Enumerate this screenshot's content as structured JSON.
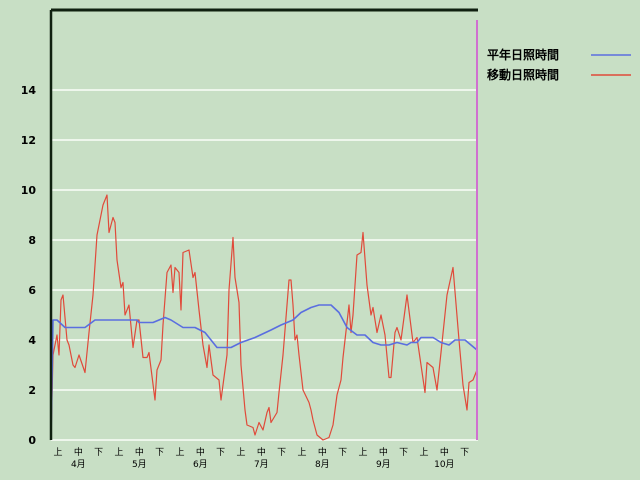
{
  "chart_data": {
    "type": "line",
    "title": "",
    "xlabel": "",
    "ylabel": "",
    "ylim": [
      0,
      17.2
    ],
    "yticks": [
      "0",
      "2",
      "4",
      "6",
      "8",
      "10",
      "12",
      "14"
    ],
    "grid": true,
    "legend_position": "top-right",
    "x_dekad_labels": [
      "上",
      "中",
      "下",
      "上",
      "中",
      "下",
      "上",
      "中",
      "下",
      "上",
      "中",
      "下",
      "上",
      "中",
      "下",
      "上",
      "中",
      "下",
      "上",
      "中",
      "下"
    ],
    "x_month_labels": [
      "4月",
      "5月",
      "6月",
      "7月",
      "8月",
      "9月",
      "10月"
    ],
    "x_range": [
      "04-01",
      "10-31"
    ],
    "series": [
      {
        "name": "平年日照時間",
        "color": "#5a6ee0",
        "points": [
          [
            "04-01",
            0
          ],
          [
            "04-02",
            4.8
          ],
          [
            "04-04",
            4.8
          ],
          [
            "04-08",
            4.5
          ],
          [
            "04-18",
            4.5
          ],
          [
            "04-23",
            4.8
          ],
          [
            "05-14",
            4.8
          ],
          [
            "05-15",
            4.7
          ],
          [
            "05-22",
            4.7
          ],
          [
            "05-28",
            4.9
          ],
          [
            "05-31",
            4.8
          ],
          [
            "06-06",
            4.5
          ],
          [
            "06-12",
            4.5
          ],
          [
            "06-17",
            4.3
          ],
          [
            "06-23",
            3.7
          ],
          [
            "06-30",
            3.7
          ],
          [
            "07-05",
            3.9
          ],
          [
            "07-12",
            4.1
          ],
          [
            "07-20",
            4.4
          ],
          [
            "07-25",
            4.6
          ],
          [
            "07-31",
            4.8
          ],
          [
            "08-04",
            5.1
          ],
          [
            "08-09",
            5.3
          ],
          [
            "08-13",
            5.4
          ],
          [
            "08-19",
            5.4
          ],
          [
            "08-23",
            5.1
          ],
          [
            "08-27",
            4.5
          ],
          [
            "09-01",
            4.2
          ],
          [
            "09-05",
            4.2
          ],
          [
            "09-09",
            3.9
          ],
          [
            "09-13",
            3.8
          ],
          [
            "09-17",
            3.8
          ],
          [
            "09-21",
            3.9
          ],
          [
            "09-26",
            3.8
          ],
          [
            "09-28",
            3.9
          ],
          [
            "10-01",
            3.9
          ],
          [
            "10-03",
            4.1
          ],
          [
            "10-09",
            4.1
          ],
          [
            "10-13",
            3.9
          ],
          [
            "10-17",
            3.8
          ],
          [
            "10-20",
            4.0
          ],
          [
            "10-25",
            4.0
          ],
          [
            "10-31",
            3.6
          ]
        ]
      },
      {
        "name": "移動日照時間",
        "color": "#e04a3a",
        "points": [
          [
            "04-01",
            0
          ],
          [
            "04-02",
            3.4
          ],
          [
            "04-04",
            4.2
          ],
          [
            "04-05",
            3.4
          ],
          [
            "04-06",
            5.6
          ],
          [
            "04-07",
            5.8
          ],
          [
            "04-09",
            4.0
          ],
          [
            "04-10",
            3.8
          ],
          [
            "04-12",
            3.0
          ],
          [
            "04-13",
            2.9
          ],
          [
            "04-15",
            3.4
          ],
          [
            "04-18",
            2.7
          ],
          [
            "04-20",
            4.3
          ],
          [
            "04-22",
            5.8
          ],
          [
            "04-24",
            8.2
          ],
          [
            "04-25",
            8.6
          ],
          [
            "04-27",
            9.4
          ],
          [
            "04-29",
            9.8
          ],
          [
            "04-30",
            8.3
          ],
          [
            "05-02",
            8.9
          ],
          [
            "05-03",
            8.7
          ],
          [
            "05-04",
            7.2
          ],
          [
            "05-06",
            6.1
          ],
          [
            "05-07",
            6.3
          ],
          [
            "05-08",
            5.0
          ],
          [
            "05-10",
            5.4
          ],
          [
            "05-12",
            3.7
          ],
          [
            "05-14",
            4.8
          ],
          [
            "05-15",
            4.8
          ],
          [
            "05-17",
            3.3
          ],
          [
            "05-19",
            3.3
          ],
          [
            "05-20",
            3.5
          ],
          [
            "05-23",
            1.6
          ],
          [
            "05-24",
            2.8
          ],
          [
            "05-26",
            3.2
          ],
          [
            "05-27",
            4.6
          ],
          [
            "05-29",
            6.7
          ],
          [
            "05-31",
            7.0
          ],
          [
            "06-01",
            5.9
          ],
          [
            "06-02",
            6.9
          ],
          [
            "06-04",
            6.7
          ],
          [
            "06-05",
            5.2
          ],
          [
            "06-06",
            7.5
          ],
          [
            "06-09",
            7.6
          ],
          [
            "06-11",
            6.5
          ],
          [
            "06-12",
            6.7
          ],
          [
            "06-14",
            5.2
          ],
          [
            "06-16",
            3.8
          ],
          [
            "06-18",
            2.9
          ],
          [
            "06-19",
            3.8
          ],
          [
            "06-21",
            2.6
          ],
          [
            "06-24",
            2.4
          ],
          [
            "06-25",
            1.6
          ],
          [
            "06-28",
            3.4
          ],
          [
            "06-29",
            6.0
          ],
          [
            "07-01",
            8.1
          ],
          [
            "07-02",
            6.5
          ],
          [
            "07-04",
            5.5
          ],
          [
            "07-05",
            3.0
          ],
          [
            "07-07",
            1.2
          ],
          [
            "07-08",
            0.6
          ],
          [
            "07-11",
            0.5
          ],
          [
            "07-12",
            0.2
          ],
          [
            "07-14",
            0.7
          ],
          [
            "07-16",
            0.4
          ],
          [
            "07-18",
            1.1
          ],
          [
            "07-19",
            1.3
          ],
          [
            "07-20",
            0.7
          ],
          [
            "07-23",
            1.1
          ],
          [
            "07-24",
            1.9
          ],
          [
            "07-26",
            3.4
          ],
          [
            "07-28",
            5.4
          ],
          [
            "07-29",
            6.4
          ],
          [
            "07-30",
            6.4
          ],
          [
            "07-31",
            5.4
          ],
          [
            "08-01",
            4.0
          ],
          [
            "08-02",
            4.2
          ],
          [
            "08-03",
            3.4
          ],
          [
            "08-05",
            2.0
          ],
          [
            "08-08",
            1.5
          ],
          [
            "08-09",
            1.2
          ],
          [
            "08-10",
            0.8
          ],
          [
            "08-12",
            0.2
          ],
          [
            "08-15",
            0.0
          ],
          [
            "08-18",
            0.1
          ],
          [
            "08-20",
            0.6
          ],
          [
            "08-22",
            1.8
          ],
          [
            "08-24",
            2.4
          ],
          [
            "08-25",
            3.3
          ],
          [
            "08-28",
            5.4
          ],
          [
            "08-29",
            4.3
          ],
          [
            "08-30",
            5.0
          ],
          [
            "09-01",
            7.4
          ],
          [
            "09-03",
            7.5
          ],
          [
            "09-04",
            8.3
          ],
          [
            "09-06",
            6.2
          ],
          [
            "09-08",
            5.0
          ],
          [
            "09-09",
            5.3
          ],
          [
            "09-11",
            4.3
          ],
          [
            "09-13",
            5.0
          ],
          [
            "09-15",
            4.2
          ],
          [
            "09-17",
            2.5
          ],
          [
            "09-18",
            2.5
          ],
          [
            "09-20",
            4.3
          ],
          [
            "09-21",
            4.5
          ],
          [
            "09-23",
            4.0
          ],
          [
            "09-26",
            5.8
          ],
          [
            "09-29",
            3.9
          ],
          [
            "10-01",
            4.1
          ],
          [
            "10-05",
            1.9
          ],
          [
            "10-06",
            3.1
          ],
          [
            "10-09",
            2.9
          ],
          [
            "10-11",
            2.0
          ],
          [
            "10-13",
            3.5
          ],
          [
            "10-16",
            5.8
          ],
          [
            "10-19",
            6.9
          ],
          [
            "10-22",
            4.0
          ],
          [
            "10-24",
            2.2
          ],
          [
            "10-26",
            1.2
          ],
          [
            "10-27",
            2.3
          ],
          [
            "10-29",
            2.4
          ],
          [
            "10-31",
            2.8
          ]
        ]
      }
    ]
  },
  "colors": {
    "background": "#c8dfc5",
    "axis": "#102010",
    "grid": "#eef6ec",
    "end_marker": "#d070d0"
  }
}
